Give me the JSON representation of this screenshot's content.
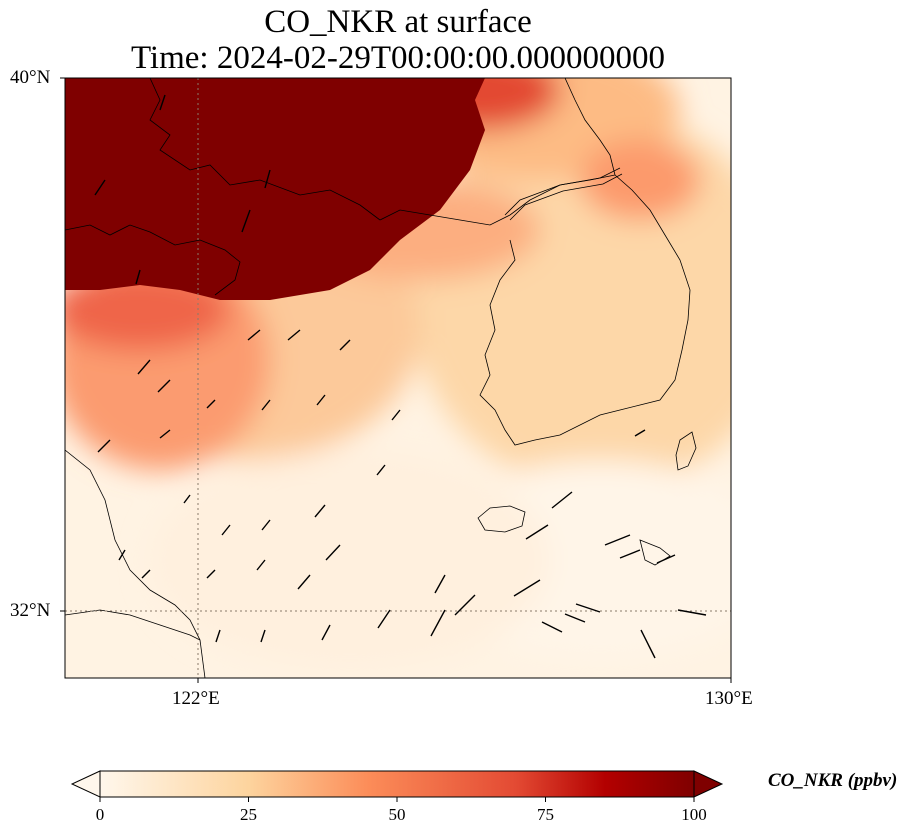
{
  "title": {
    "line1": "CO_NKR at surface",
    "line2": "Time: 2024-02-29T00:00:00.000000000"
  },
  "axes": {
    "lat_ticks": [
      "40°N",
      "32°N"
    ],
    "lon_ticks": [
      "122°E",
      "130°E"
    ],
    "lon_range": [
      120,
      130
    ],
    "lat_range": [
      31,
      40
    ]
  },
  "colorbar": {
    "label": "CO_NKR (ppbv)",
    "ticks": [
      "0",
      "25",
      "50",
      "75",
      "100"
    ],
    "range": [
      0,
      100
    ],
    "extend": "both",
    "colormap": "OrRd"
  },
  "colors": {
    "low": "#fff7ec",
    "mid": "#fdbb84",
    "high": "#d7301f",
    "max": "#7f0000"
  }
}
